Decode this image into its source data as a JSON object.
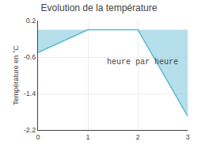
{
  "chart_data": {
    "type": "area",
    "title": "Evolution de la température",
    "ylabel": "Température en °C",
    "xlabel": "heure par heure",
    "x": [
      0,
      1,
      2,
      3
    ],
    "values": [
      -0.5,
      0.0,
      0.0,
      -1.9
    ],
    "color": "#5ab8d0",
    "xlim": [
      0,
      3
    ],
    "xticks": [
      0,
      1,
      2,
      3
    ],
    "ylim": [
      -2.2,
      0.2
    ],
    "yticks": [
      0.2,
      -0.6,
      -1.4,
      -2.2
    ],
    "grid": true
  }
}
